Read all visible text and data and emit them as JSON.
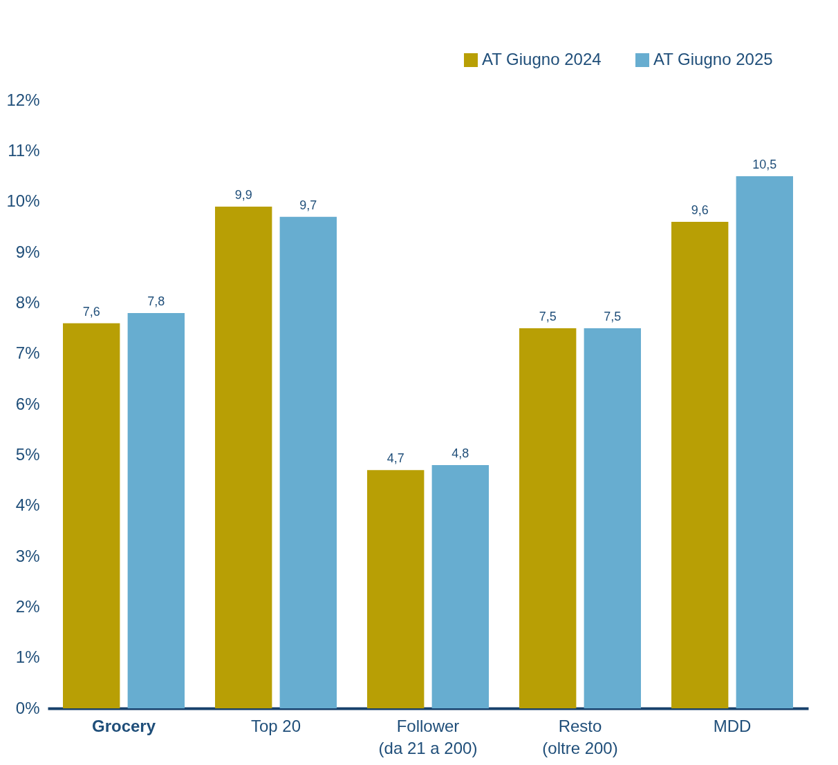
{
  "chart_data": {
    "type": "bar",
    "categories": [
      "Grocery",
      "Top 20",
      "Follower\n(da 21 a 200)",
      "Resto\n(oltre 200)",
      "MDD"
    ],
    "series": [
      {
        "name": "AT Giugno 2024",
        "color": "#b89f05",
        "values": [
          7.6,
          9.9,
          4.7,
          7.5,
          9.6
        ],
        "value_labels": [
          "7,6",
          "9,9",
          "4,7",
          "7,5",
          "9,6"
        ]
      },
      {
        "name": "AT Giugno 2025",
        "color": "#67add0",
        "values": [
          7.8,
          9.7,
          4.8,
          7.5,
          10.5
        ],
        "value_labels": [
          "7,8",
          "9,7",
          "4,8",
          "7,5",
          "10,5"
        ]
      }
    ],
    "ylim": [
      0,
      12
    ],
    "yticks": [
      {
        "value": 0,
        "label": "0%"
      },
      {
        "value": 1,
        "label": "1%"
      },
      {
        "value": 2,
        "label": "2%"
      },
      {
        "value": 3,
        "label": "3%"
      },
      {
        "value": 4,
        "label": "4%"
      },
      {
        "value": 5,
        "label": "5%"
      },
      {
        "value": 6,
        "label": "6%"
      },
      {
        "value": 7,
        "label": "7%"
      },
      {
        "value": 8,
        "label": "8%"
      },
      {
        "value": 9,
        "label": "9%"
      },
      {
        "value": 10,
        "label": "10%"
      },
      {
        "value": 11,
        "label": "11%"
      },
      {
        "value": 12,
        "label": "12%"
      }
    ],
    "grid": false,
    "legend": "top right"
  }
}
